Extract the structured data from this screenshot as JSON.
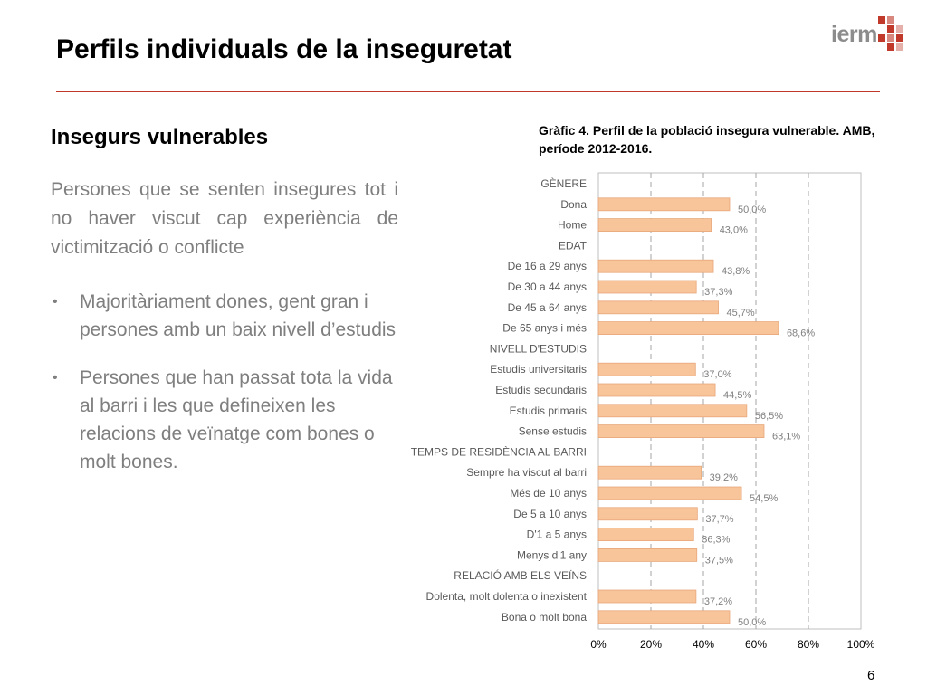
{
  "header": {
    "title": "Perfils individuals de la inseguretat",
    "logo_text": "ierm",
    "rule_color": "#c0392b"
  },
  "left": {
    "subheading": "Insegurs vulnerables",
    "intro": "Persones que se senten insegures tot i no haver viscut cap experiència de victimització o conflicte",
    "bullets": [
      "Majoritàriament dones, gent gran i persones amb un baix nivell d’estudis",
      "Persones que han passat tota la vida al barri i les que defineixen les relacions de veïnatge com bones o molt bones."
    ]
  },
  "page_number": "6",
  "chart_data": {
    "type": "bar",
    "orientation": "horizontal",
    "title": "Gràfic 4. Perfil de la població insegura vulnerable. AMB, període 2012-2016.",
    "xlim": [
      0,
      100
    ],
    "ticks": [
      "0%",
      "20%",
      "40%",
      "60%",
      "80%",
      "100%"
    ],
    "tick_values": [
      0,
      20,
      40,
      60,
      80,
      100
    ],
    "grid": "vertical dashed",
    "bar_color": "#f8c49a",
    "bar_border": "#e8a77a",
    "rows": [
      {
        "label": "GÈNERE",
        "header": true
      },
      {
        "label": "Dona",
        "value": 50.0,
        "data_label": "50,0%"
      },
      {
        "label": "Home",
        "value": 43.0,
        "data_label": "43,0%"
      },
      {
        "label": "EDAT",
        "header": true
      },
      {
        "label": "De 16 a 29 anys",
        "value": 43.8,
        "data_label": "43,8%"
      },
      {
        "label": "De 30 a 44 anys",
        "value": 37.3,
        "data_label": "37,3%"
      },
      {
        "label": "De 45 a 64 anys",
        "value": 45.7,
        "data_label": "45,7%"
      },
      {
        "label": "De 65 anys i més",
        "value": 68.6,
        "data_label": "68,6%"
      },
      {
        "label": "NIVELL D'ESTUDIS",
        "header": true
      },
      {
        "label": "Estudis universitaris",
        "value": 37.0,
        "data_label": "37,0%"
      },
      {
        "label": "Estudis secundaris",
        "value": 44.5,
        "data_label": "44,5%"
      },
      {
        "label": "Estudis primaris",
        "value": 56.5,
        "data_label": "56,5%"
      },
      {
        "label": "Sense estudis",
        "value": 63.1,
        "data_label": "63,1%"
      },
      {
        "label": "TEMPS DE RESIDÈNCIA AL BARRI",
        "header": true
      },
      {
        "label": "Sempre ha viscut al barri",
        "value": 39.2,
        "data_label": "39,2%"
      },
      {
        "label": "Més de 10 anys",
        "value": 54.5,
        "data_label": "54,5%"
      },
      {
        "label": "De 5 a 10 anys",
        "value": 37.7,
        "data_label": "37,7%"
      },
      {
        "label": "D'1 a 5 anys",
        "value": 36.3,
        "data_label": "36,3%"
      },
      {
        "label": "Menys d'1 any",
        "value": 37.5,
        "data_label": "37,5%"
      },
      {
        "label": "RELACIÓ AMB ELS VEÏNS",
        "header": true
      },
      {
        "label": "Dolenta, molt dolenta o inexistent",
        "value": 37.2,
        "data_label": "37,2%"
      },
      {
        "label": "Bona o molt bona",
        "value": 50.0,
        "data_label": "50,0%"
      }
    ]
  }
}
